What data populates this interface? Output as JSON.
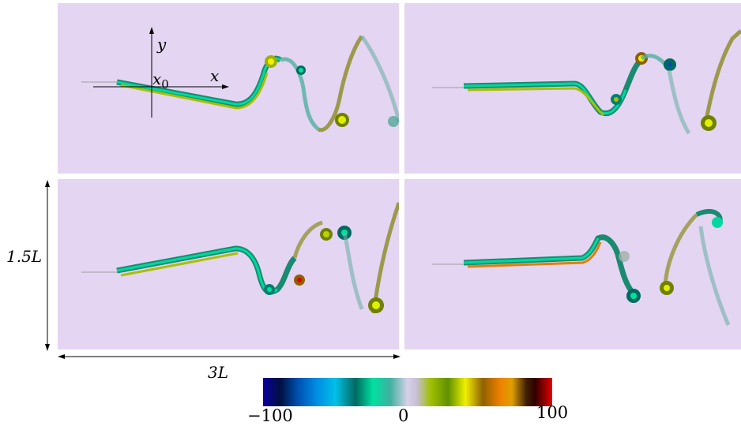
{
  "panels": [
    "top-left",
    "top-right",
    "bottom-left",
    "bottom-right"
  ],
  "axes": {
    "y_label": "y",
    "x_label": "x",
    "origin_label": "x0"
  },
  "dimensions": {
    "height_label": "1.5L",
    "width_label": "3L"
  },
  "colorbar": {
    "min_label": "−100",
    "mid_label": "0",
    "max_label": "100",
    "colors": [
      "#0a00a0",
      "#0088e0",
      "#00e0a0",
      "#d8d0e8",
      "#a0c000",
      "#f0f000",
      "#f08000",
      "#e00000"
    ]
  }
}
